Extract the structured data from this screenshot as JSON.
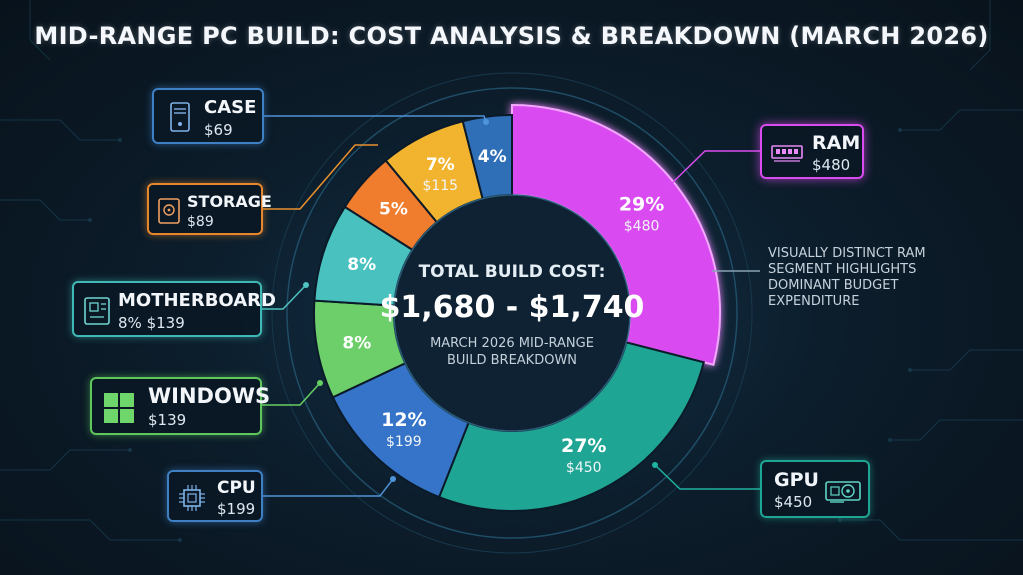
{
  "title": "MID-RANGE PC BUILD: COST ANALYSIS & BREAKDOWN (MARCH 2026)",
  "center": {
    "heading": "TOTAL BUILD COST:",
    "amount": "$1,680 - $1,740",
    "sub1": "MARCH 2026 MID-RANGE",
    "sub2": "BUILD BREAKDOWN"
  },
  "note": "VISUALLY DISTINCT RAM SEGMENT HIGHLIGHTS DOMINANT BUDGET EXPENDITURE",
  "colors": {
    "ram": "#d94cf0",
    "gpu": "#1fa593",
    "cpu": "#3574c8",
    "windows": "#6ccf6a",
    "motherboard": "#49c1be",
    "storage": "#f07d2e",
    "case_slice": "#f2b42f",
    "case_blue": "#2f6fb8"
  },
  "chart_data": {
    "type": "pie",
    "title": "MID-RANGE PC BUILD: COST ANALYSIS & BREAKDOWN (MARCH 2026)",
    "slices": [
      {
        "key": "ram",
        "percent": 29,
        "percent_label": "29%",
        "value_label": "$480",
        "value": 480,
        "color": "#d94cf0"
      },
      {
        "key": "gpu",
        "percent": 27,
        "percent_label": "27%",
        "value_label": "$450",
        "value": 450,
        "color": "#1fa593"
      },
      {
        "key": "cpu",
        "percent": 12,
        "percent_label": "12%",
        "value_label": "$199",
        "value": 199,
        "color": "#3574c8"
      },
      {
        "key": "windows",
        "percent": 8,
        "percent_label": "8%",
        "value_label": "",
        "value": 139,
        "color": "#6ccf6a"
      },
      {
        "key": "motherboard",
        "percent": 8,
        "percent_label": "8%",
        "value_label": "",
        "value": 139,
        "color": "#49c1be"
      },
      {
        "key": "storage",
        "percent": 5,
        "percent_label": "5%",
        "value_label": "",
        "value": 89,
        "color": "#f07d2e"
      },
      {
        "key": "case_yellow",
        "percent": 7,
        "percent_label": "7%",
        "value_label": "$115",
        "value": 115,
        "color": "#f2b42f"
      },
      {
        "key": "case_blue",
        "percent": 4,
        "percent_label": "4%",
        "value_label": "",
        "value": 69,
        "color": "#2f6fb8"
      }
    ],
    "legend": [
      {
        "key": "case",
        "name": "CASE",
        "value": "$69"
      },
      {
        "key": "storage",
        "name": "STORAGE",
        "value": "$89"
      },
      {
        "key": "motherboard",
        "name": "MOTHERBOARD",
        "value": "8% $139"
      },
      {
        "key": "windows",
        "name": "WINDOWS",
        "value": "$139"
      },
      {
        "key": "cpu",
        "name": "CPU",
        "value": "$199"
      },
      {
        "key": "ram",
        "name": "RAM",
        "value": "$480"
      },
      {
        "key": "gpu",
        "name": "GPU",
        "value": "$450"
      }
    ]
  }
}
